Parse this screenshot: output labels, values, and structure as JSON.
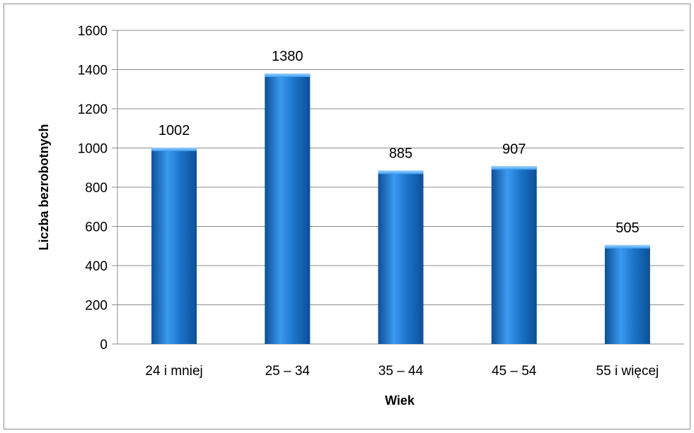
{
  "chart_data": {
    "type": "bar",
    "title": "",
    "xlabel": "Wiek",
    "ylabel": "Liczba bezrobotnych",
    "categories": [
      "24 i mniej",
      "25 – 34",
      "35 – 44",
      "45 – 54",
      "55 i więcej"
    ],
    "values": [
      1002,
      1380,
      885,
      907,
      505
    ],
    "data_labels": [
      "1002",
      "1380",
      "885",
      "907",
      "505"
    ],
    "yticks": [
      0,
      200,
      400,
      600,
      800,
      1000,
      1200,
      1400,
      1600
    ],
    "ylim": [
      0,
      1600
    ],
    "grid": true,
    "legend": "none",
    "bar_color": "#1a73c8",
    "bar_color_light": "#3a9af0",
    "bar_color_dark": "#0d4f96",
    "grid_color": "#8c8c8c"
  }
}
